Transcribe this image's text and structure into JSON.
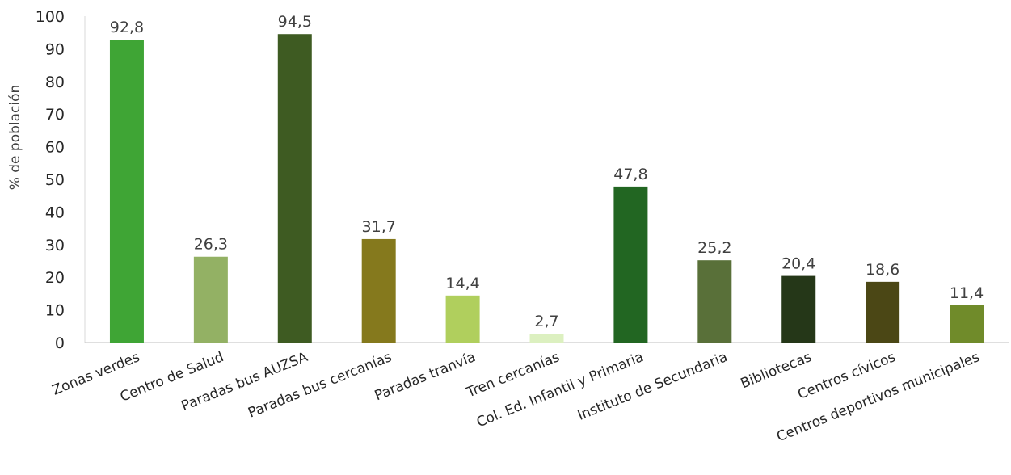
{
  "chart_data": {
    "type": "bar",
    "title": "",
    "xlabel": "",
    "ylabel": "% de población",
    "ylim": [
      0,
      100
    ],
    "yticks": [
      0,
      10,
      20,
      30,
      40,
      50,
      60,
      70,
      80,
      90,
      100
    ],
    "grid": false,
    "legend": "none",
    "categories": [
      "Zonas verdes",
      "Centro de Salud",
      "Paradas bus AUZSA",
      "Paradas bus cercanías",
      "Paradas tranvía",
      "Tren cercanías",
      "Col. Ed. Infantil y Primaria",
      "Instituto de Secundaria",
      "Bibliotecas",
      "Centros cívicos",
      "Centros deportivos municipales"
    ],
    "values": [
      92.8,
      26.3,
      94.5,
      31.7,
      14.4,
      2.7,
      47.8,
      25.2,
      20.4,
      18.6,
      11.4
    ],
    "value_labels": [
      "92,8",
      "26,3",
      "94,5",
      "31,7",
      "14,4",
      "2,7",
      "47,8",
      "25,2",
      "20,4",
      "18,6",
      "11,4"
    ],
    "colors": [
      "#3fa535",
      "#93b164",
      "#3e5b22",
      "#85791d",
      "#b0cf5d",
      "#dcf0c0",
      "#226622",
      "#597039",
      "#253718",
      "#4b4715",
      "#708b2a"
    ]
  }
}
